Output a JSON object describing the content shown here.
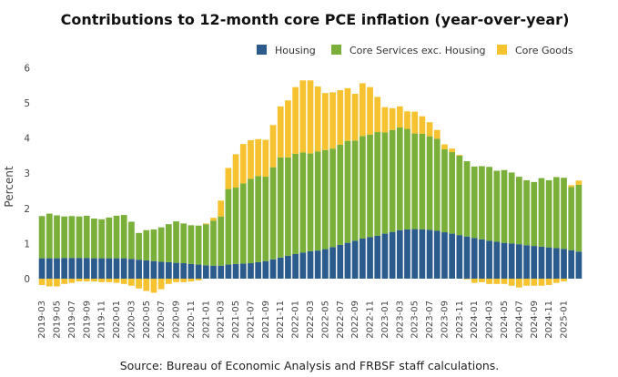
{
  "chart_data": {
    "type": "bar",
    "stacked": true,
    "title": "Contributions to 12-month core PCE inflation (year-over-year)",
    "ylabel": "Percent",
    "source": "Source: Bureau of Economic Analysis and FRBSF staff calculations.",
    "ylim": [
      -0.5,
      6
    ],
    "yticks": [
      0,
      1,
      2,
      3,
      4,
      5,
      6
    ],
    "legend_position": "top-right",
    "grid": false,
    "colors": {
      "Housing": "#2a5b8c",
      "Core Services exc. Housing": "#7ab03a",
      "Core Goods": "#f7c22f"
    },
    "x_tick_labels": [
      "2019-03",
      "2019-05",
      "2019-07",
      "2019-09",
      "2019-11",
      "2020-01",
      "2020-03",
      "2020-05",
      "2020-07",
      "2020-09",
      "2020-11",
      "2021-01",
      "2021-03",
      "2021-05",
      "2021-07",
      "2021-09",
      "2021-11",
      "2022-01",
      "2022-03",
      "2022-05",
      "2022-07",
      "2022-09",
      "2022-11",
      "2023-01",
      "2023-03",
      "2023-05",
      "2023-07",
      "2023-09",
      "2023-11",
      "2024-01",
      "2024-03",
      "2024-05",
      "2024-07",
      "2024-09",
      "2024-11",
      "2025-01"
    ],
    "categories": [
      "2019-03",
      "2019-04",
      "2019-05",
      "2019-06",
      "2019-07",
      "2019-08",
      "2019-09",
      "2019-10",
      "2019-11",
      "2019-12",
      "2020-01",
      "2020-02",
      "2020-03",
      "2020-04",
      "2020-05",
      "2020-06",
      "2020-07",
      "2020-08",
      "2020-09",
      "2020-10",
      "2020-11",
      "2020-12",
      "2021-01",
      "2021-02",
      "2021-03",
      "2021-04",
      "2021-05",
      "2021-06",
      "2021-07",
      "2021-08",
      "2021-09",
      "2021-10",
      "2021-11",
      "2021-12",
      "2022-01",
      "2022-02",
      "2022-03",
      "2022-04",
      "2022-05",
      "2022-06",
      "2022-07",
      "2022-08",
      "2022-09",
      "2022-10",
      "2022-11",
      "2022-12",
      "2023-01",
      "2023-02",
      "2023-03",
      "2023-04",
      "2023-05",
      "2023-06",
      "2023-07",
      "2023-08",
      "2023-09",
      "2023-10",
      "2023-11",
      "2023-12",
      "2024-01",
      "2024-02",
      "2024-03",
      "2024-04",
      "2024-05",
      "2024-06",
      "2024-07",
      "2024-08",
      "2024-09",
      "2024-10",
      "2024-11",
      "2024-12",
      "2025-01",
      "2025-02",
      "2025-03"
    ],
    "series": [
      {
        "name": "Housing",
        "values": [
          0.58,
          0.58,
          0.58,
          0.59,
          0.59,
          0.59,
          0.59,
          0.58,
          0.58,
          0.58,
          0.58,
          0.58,
          0.56,
          0.54,
          0.52,
          0.5,
          0.48,
          0.47,
          0.45,
          0.44,
          0.42,
          0.4,
          0.38,
          0.37,
          0.37,
          0.4,
          0.42,
          0.43,
          0.44,
          0.47,
          0.5,
          0.55,
          0.6,
          0.65,
          0.7,
          0.74,
          0.78,
          0.8,
          0.84,
          0.9,
          0.96,
          1.02,
          1.08,
          1.14,
          1.18,
          1.22,
          1.28,
          1.33,
          1.38,
          1.4,
          1.41,
          1.4,
          1.39,
          1.36,
          1.32,
          1.28,
          1.24,
          1.2,
          1.16,
          1.12,
          1.08,
          1.05,
          1.02,
          1.0,
          0.98,
          0.95,
          0.93,
          0.91,
          0.89,
          0.87,
          0.85,
          0.81,
          0.77
        ]
      },
      {
        "name": "Core Services exc. Housing",
        "values": [
          1.2,
          1.27,
          1.22,
          1.18,
          1.19,
          1.18,
          1.2,
          1.13,
          1.11,
          1.16,
          1.21,
          1.23,
          1.06,
          0.76,
          0.86,
          0.9,
          0.98,
          1.08,
          1.18,
          1.13,
          1.1,
          1.11,
          1.17,
          1.28,
          1.4,
          2.15,
          2.17,
          2.28,
          2.4,
          2.45,
          2.4,
          2.62,
          2.85,
          2.8,
          2.85,
          2.85,
          2.78,
          2.82,
          2.82,
          2.8,
          2.85,
          2.9,
          2.85,
          2.92,
          2.92,
          2.95,
          2.88,
          2.9,
          2.92,
          2.86,
          2.72,
          2.72,
          2.66,
          2.62,
          2.36,
          2.32,
          2.26,
          2.14,
          2.03,
          2.08,
          2.1,
          2.02,
          2.07,
          2.02,
          1.92,
          1.85,
          1.82,
          1.95,
          1.91,
          2.02,
          2.02,
          1.8,
          1.9
        ]
      },
      {
        "name": "Core Goods",
        "values": [
          -0.18,
          -0.22,
          -0.22,
          -0.15,
          -0.12,
          -0.08,
          -0.08,
          -0.08,
          -0.1,
          -0.1,
          -0.12,
          -0.15,
          -0.2,
          -0.28,
          -0.35,
          -0.4,
          -0.3,
          -0.15,
          -0.1,
          -0.1,
          -0.08,
          -0.05,
          0.02,
          0.08,
          0.45,
          0.6,
          0.95,
          1.12,
          1.1,
          1.05,
          1.05,
          1.2,
          1.45,
          1.62,
          1.9,
          2.05,
          2.08,
          1.85,
          1.62,
          1.6,
          1.55,
          1.5,
          1.33,
          1.5,
          1.35,
          1.0,
          0.72,
          0.62,
          0.6,
          0.5,
          0.62,
          0.5,
          0.4,
          0.25,
          0.14,
          0.1,
          0.02,
          -0.02,
          -0.12,
          -0.1,
          -0.15,
          -0.15,
          -0.15,
          -0.2,
          -0.25,
          -0.2,
          -0.2,
          -0.2,
          -0.18,
          -0.12,
          -0.08,
          0.05,
          0.12
        ]
      }
    ]
  }
}
